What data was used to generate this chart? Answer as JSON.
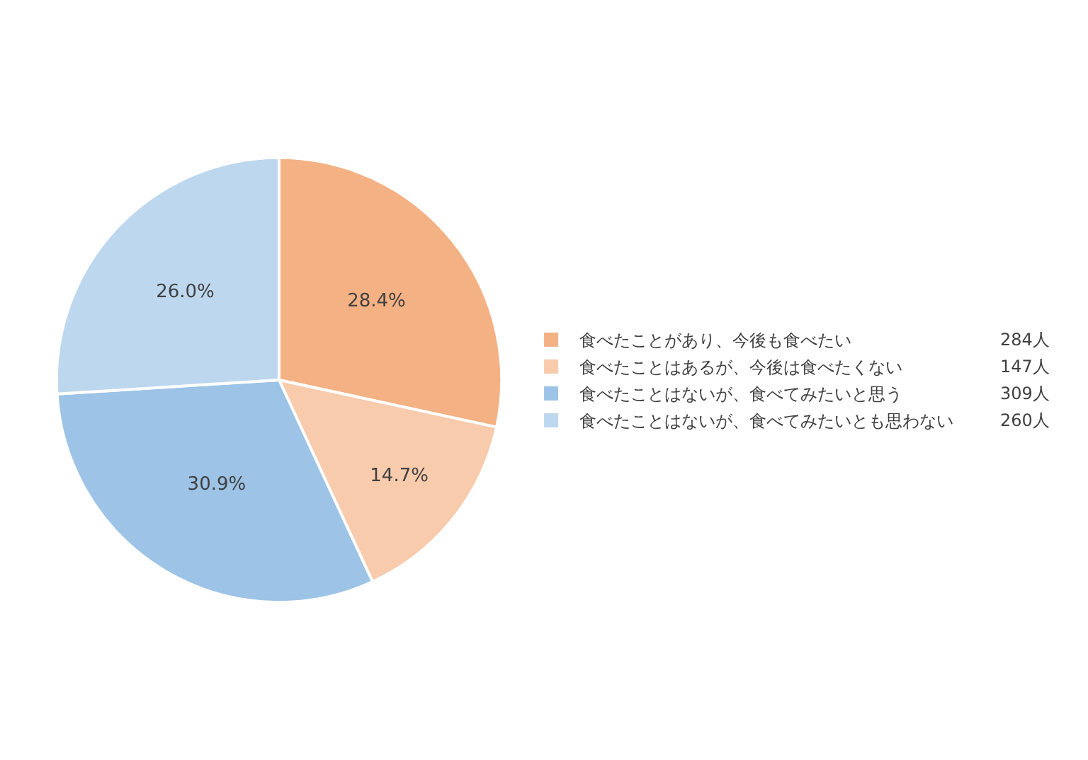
{
  "chart_data": {
    "type": "pie",
    "categories": [
      "食べたことがあり、今後も食べたい",
      "食べたことはあるが、今後は食べたくない",
      "食べたことはないが、食べてみたいと思う",
      "食べたことはないが、食べてみたいとも思わない"
    ],
    "values": [
      28.4,
      14.7,
      30.9,
      26.0
    ],
    "colors": [
      "#f4b183",
      "#f8cbad",
      "#9dc3e6",
      "#bdd7ee"
    ],
    "value_labels": [
      "28.4%",
      "14.7%",
      "30.9%",
      "26.0%"
    ],
    "annotations": [
      "284人",
      "147人",
      "309人",
      "260人"
    ],
    "legend": "right"
  }
}
